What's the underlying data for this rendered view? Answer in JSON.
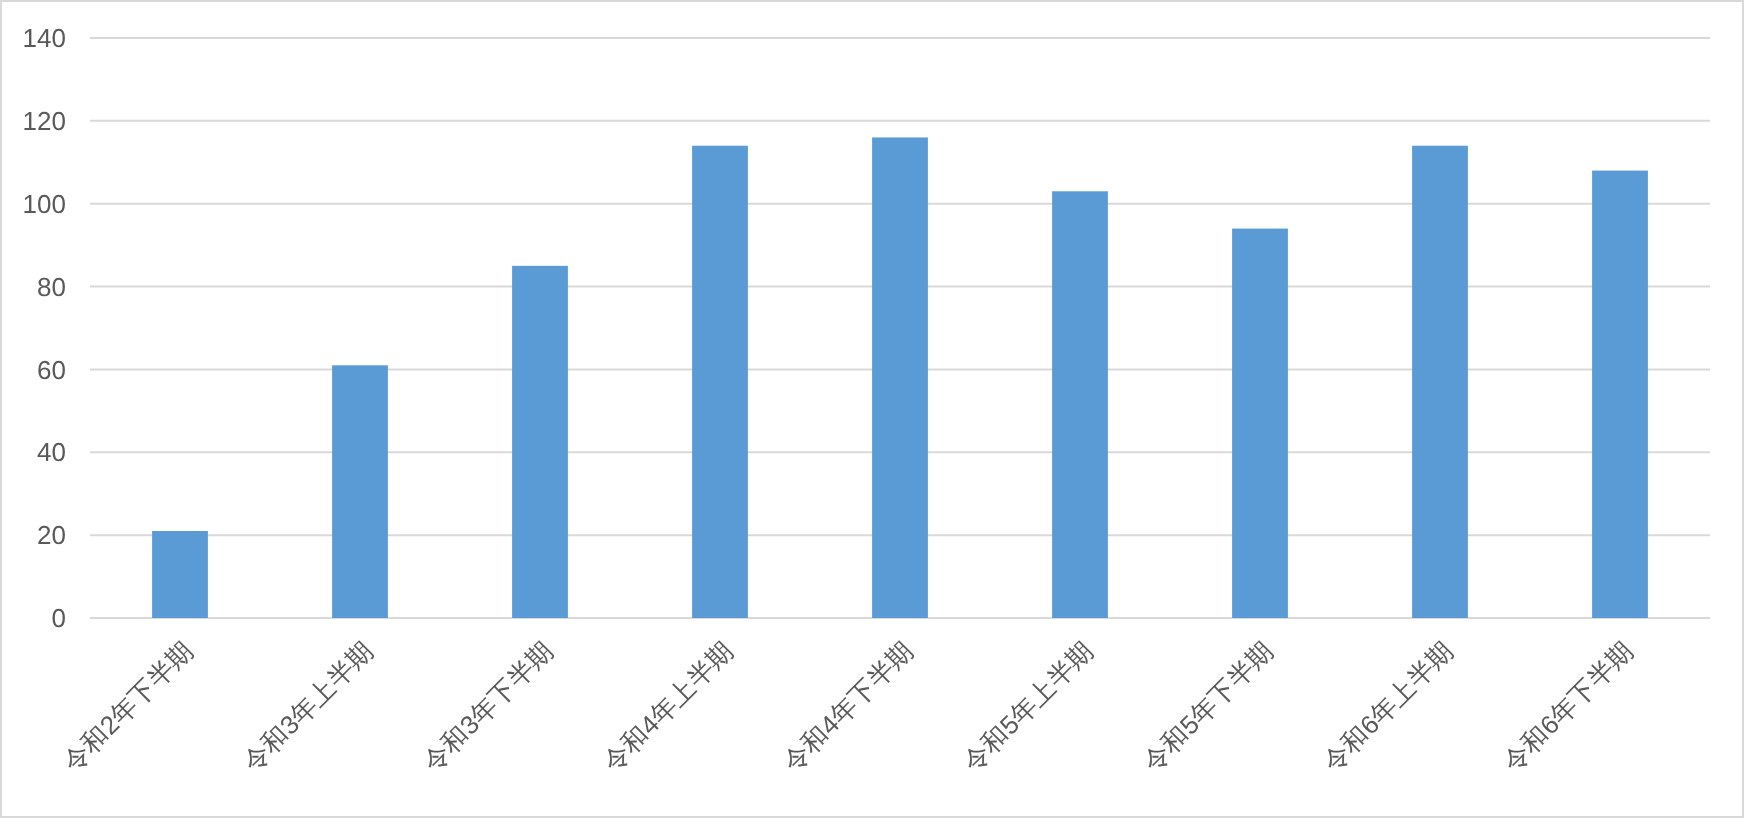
{
  "chart_data": {
    "type": "bar",
    "categories": [
      "令和2年下半期",
      "令和3年上半期",
      "令和3年下半期",
      "令和4年上半期",
      "令和4年下半期",
      "令和5年上半期",
      "令和5年下半期",
      "令和6年上半期",
      "令和6年下半期"
    ],
    "values": [
      21,
      61,
      85,
      114,
      116,
      103,
      94,
      114,
      108
    ],
    "color": "#5b9bd5",
    "ylim": [
      0,
      140
    ],
    "yticks": [
      0,
      20,
      40,
      60,
      80,
      100,
      120,
      140
    ],
    "grid": "y"
  }
}
